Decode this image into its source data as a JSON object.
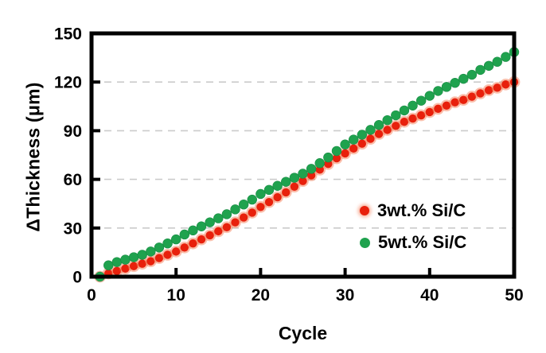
{
  "figure": {
    "background": "#ffffff",
    "frame_color": "#000000",
    "gridline_color": "#cbcbcb"
  },
  "chart_data": {
    "type": "scatter",
    "title": "",
    "xlabel": "Cycle",
    "ylabel": "ΔThickness (μm)",
    "xlim": [
      0,
      50
    ],
    "ylim": [
      0,
      150
    ],
    "x_ticks": [
      0,
      10,
      20,
      30,
      40,
      50
    ],
    "y_ticks": [
      0,
      30,
      60,
      90,
      120,
      150
    ],
    "grid": "horizontal-dashed",
    "legend_position": "inside-lower-right",
    "x": [
      1,
      2,
      3,
      4,
      5,
      6,
      7,
      8,
      9,
      10,
      11,
      12,
      13,
      14,
      15,
      16,
      17,
      18,
      19,
      20,
      21,
      22,
      23,
      24,
      25,
      26,
      27,
      28,
      29,
      30,
      31,
      32,
      33,
      34,
      35,
      36,
      37,
      38,
      39,
      40,
      41,
      42,
      43,
      44,
      45,
      46,
      47,
      48,
      49,
      50
    ],
    "series": [
      {
        "name": "3wt.% Si/C",
        "color": "#E8200C",
        "halo_color": "#F37048",
        "marker": "circle",
        "values": [
          0,
          2,
          3.5,
          5,
          6.5,
          8,
          9.5,
          11.5,
          13.5,
          15.5,
          18,
          20.5,
          23,
          25.5,
          28,
          30.5,
          33.5,
          36.5,
          39.5,
          43,
          46,
          49,
          52,
          55.5,
          59,
          62.5,
          66,
          69.5,
          73,
          76,
          79,
          82,
          85,
          88,
          90.5,
          93,
          95.5,
          97.5,
          99.5,
          101.5,
          103.5,
          105.5,
          107.5,
          109,
          111,
          113,
          115,
          116.5,
          118.5,
          120
        ]
      },
      {
        "name": "5wt.% Si/C",
        "color": "#1FA24E",
        "halo_color": "",
        "marker": "circle",
        "values": [
          0,
          7,
          9,
          10.5,
          12,
          13.5,
          15.5,
          18,
          20.5,
          23,
          26,
          28.5,
          31,
          33.5,
          36,
          38.5,
          41.5,
          44.5,
          47.5,
          51,
          53.5,
          56,
          58.5,
          61,
          63.5,
          66.5,
          70,
          73.5,
          77.5,
          81.5,
          84.5,
          87.5,
          90.5,
          93.5,
          96.5,
          99.5,
          102.5,
          105.5,
          108.5,
          111.5,
          114.5,
          117,
          119.5,
          122,
          124.5,
          127.5,
          130,
          132.5,
          135.5,
          138.5
        ]
      }
    ]
  }
}
